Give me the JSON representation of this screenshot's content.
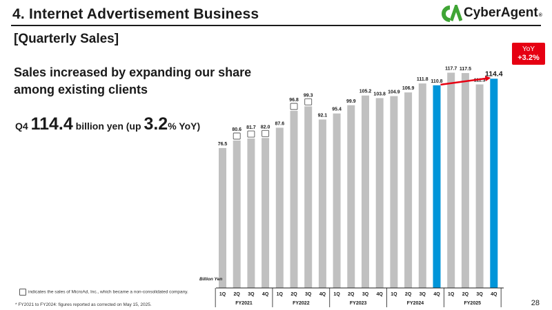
{
  "header": {
    "section_title": "4.  Internet Advertisement Business",
    "logo_text": "CyberAgent",
    "logo_reg": "®"
  },
  "subtitle": "[Quarterly Sales]",
  "headline": "Sales increased by expanding our share among existing clients",
  "kpi": {
    "quarter": "Q4",
    "sales_value": "114.4",
    "sales_unit_text": "billion yen (up",
    "yoy_value": "3.2",
    "yoy_suffix": "% YoY)"
  },
  "yoy_callout": {
    "label": "YoY",
    "value": "+3.2%"
  },
  "legend_note": "indicates the sales of MicroAd, Inc., which became a non-consolidated company.",
  "footnote": "*  FY2021 to FY2024: figures reported as corrected on May 15, 2025.",
  "page_number": "28",
  "colors": {
    "bar_default": "#c0c0c0",
    "bar_highlight": "#0095d9",
    "callout_red": "#e60012",
    "axis": "#1a1a1a"
  },
  "chart_data": {
    "type": "bar",
    "title": "Quarterly Sales",
    "unit_label": "Billion Yen",
    "ylim": [
      0,
      125
    ],
    "quarters": [
      "1Q",
      "2Q",
      "3Q",
      "4Q",
      "1Q",
      "2Q",
      "3Q",
      "4Q",
      "1Q",
      "2Q",
      "3Q",
      "4Q",
      "1Q",
      "2Q",
      "3Q",
      "4Q",
      "1Q",
      "2Q",
      "3Q",
      "4Q"
    ],
    "fiscal_years": [
      "FY2021",
      "FY2022",
      "FY2023",
      "FY2024",
      "FY2025"
    ],
    "values": [
      76.5,
      80.6,
      81.7,
      82.0,
      87.6,
      96.8,
      99.3,
      92.1,
      95.4,
      99.9,
      105.2,
      103.8,
      104.9,
      106.9,
      111.8,
      110.8,
      117.7,
      117.5,
      111.3,
      114.4
    ],
    "value_labels": [
      "76.5",
      "80.6",
      "81.7",
      "82.0",
      "87.6",
      "96.8",
      "99.3",
      "92.1",
      "95.4",
      "99.9",
      "105.2",
      "103.8",
      "104.9",
      "106.9",
      "111.8",
      "110.8",
      "117.7",
      "117.5",
      "111.3",
      "114.4"
    ],
    "highlighted": [
      15,
      19
    ],
    "microad_marked": [
      1,
      2,
      3,
      5,
      6
    ],
    "yoy_arrow": {
      "from": 15,
      "to": 19
    }
  }
}
